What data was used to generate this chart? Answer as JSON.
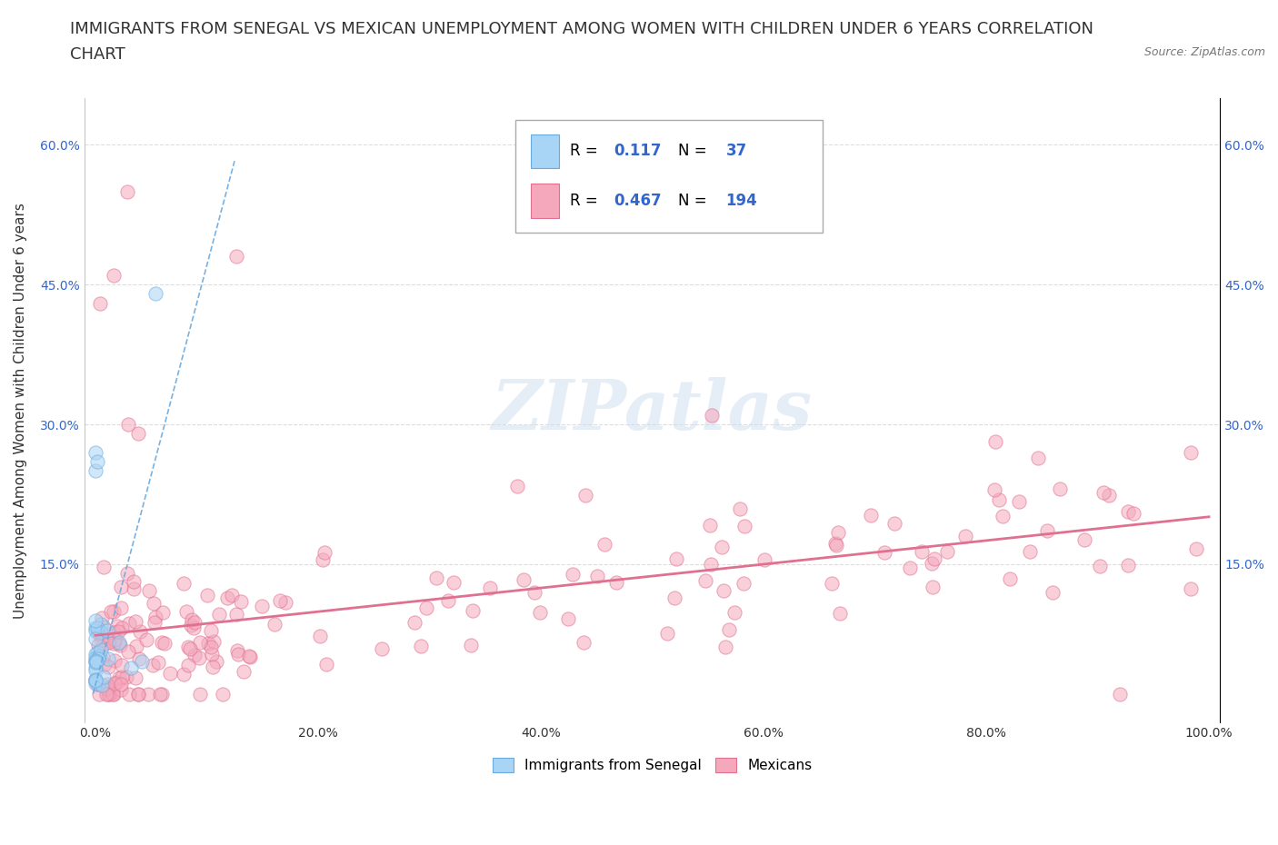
{
  "title_line1": "IMMIGRANTS FROM SENEGAL VS MEXICAN UNEMPLOYMENT AMONG WOMEN WITH CHILDREN UNDER 6 YEARS CORRELATION",
  "title_line2": "CHART",
  "source": "Source: ZipAtlas.com",
  "ylabel": "Unemployment Among Women with Children Under 6 years",
  "xlim": [
    0.0,
    1.0
  ],
  "ylim": [
    -0.02,
    0.65
  ],
  "xtick_labels": [
    "0.0%",
    "",
    "20.0%",
    "",
    "40.0%",
    "",
    "60.0%",
    "",
    "80.0%",
    "",
    "100.0%"
  ],
  "xtick_vals": [
    0.0,
    0.1,
    0.2,
    0.3,
    0.4,
    0.5,
    0.6,
    0.7,
    0.8,
    0.9,
    1.0
  ],
  "ytick_labels": [
    "15.0%",
    "30.0%",
    "45.0%",
    "60.0%"
  ],
  "ytick_vals": [
    0.15,
    0.3,
    0.45,
    0.6
  ],
  "senegal_color": "#A8D4F5",
  "senegal_edge": "#6AAADE",
  "mexican_color": "#F5A8BC",
  "mexican_edge": "#E07090",
  "senegal_R": 0.117,
  "senegal_N": 37,
  "mexican_R": 0.467,
  "mexican_N": 194,
  "senegal_line_color": "#6AAADE",
  "mexican_line_color": "#E07090",
  "legend_items": [
    "Immigrants from Senegal",
    "Mexicans"
  ],
  "background_color": "#FFFFFF",
  "watermark": "ZIPatlas",
  "grid_color": "#DDDDDD",
  "title_fontsize": 13,
  "axis_label_fontsize": 11,
  "tick_fontsize": 10,
  "scatter_alpha": 0.55,
  "scatter_size": 120
}
